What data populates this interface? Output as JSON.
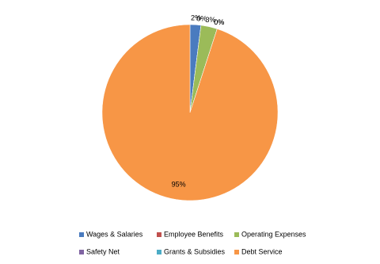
{
  "chart_data": {
    "type": "pie",
    "categories": [
      "Wages & Salaries",
      "Employee Benefits",
      "Operating Expenses",
      "Safety Net",
      "Grants & Subsidies",
      "Debt Service"
    ],
    "values": [
      2,
      0,
      3,
      0,
      0,
      95
    ],
    "value_labels": [
      "2%",
      "0%",
      "3%",
      "0%",
      "0%",
      "95%"
    ],
    "colors": [
      "#4a7bbf",
      "#c0504d",
      "#9bbb59",
      "#8064a2",
      "#4bacc6",
      "#f79646"
    ]
  }
}
